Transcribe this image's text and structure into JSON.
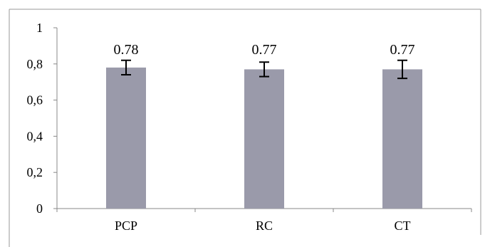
{
  "chart_data": {
    "type": "bar",
    "categories": [
      "PCP",
      "RC",
      "CT"
    ],
    "values": [
      0.78,
      0.77,
      0.77
    ],
    "data_labels": [
      "0.78",
      "0.77",
      "0.77"
    ],
    "error_bars": [
      {
        "low": 0.74,
        "high": 0.82
      },
      {
        "low": 0.73,
        "high": 0.81
      },
      {
        "low": 0.72,
        "high": 0.82
      }
    ],
    "ylim": [
      0,
      1
    ],
    "yticks": [
      0,
      0.2,
      0.4,
      0.6,
      0.8,
      1
    ],
    "ytick_labels": [
      "0",
      "0,2",
      "0,4",
      "0,6",
      "0,8",
      "1"
    ],
    "title": "",
    "xlabel": "",
    "ylabel": "",
    "grid": false,
    "legend": "none",
    "bar_color": "#9a9aaa",
    "error_bar_color": "#000000",
    "axis_color": "#888888",
    "frame_color": "#999999"
  }
}
